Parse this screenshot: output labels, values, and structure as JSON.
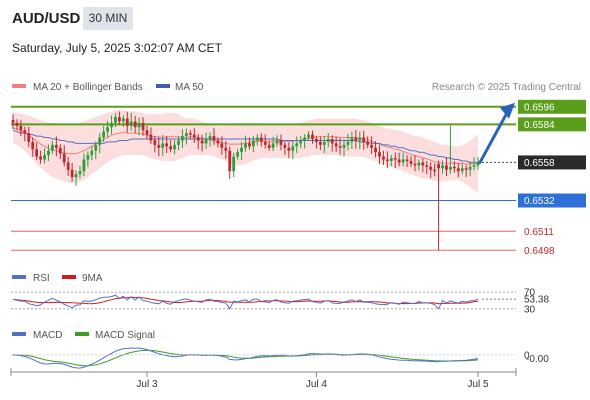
{
  "header": {
    "symbol": "AUD/USD",
    "timeframe": "30 MIN",
    "datetime": "Saturday, July 5, 2025 3:02:07 AM CET"
  },
  "legend": {
    "ma20": "MA 20 + Bollinger Bands",
    "ma50": "MA 50",
    "credit": "Research © 2025 Trading Central"
  },
  "colors": {
    "green_level": "#5a9e1c",
    "blue_level": "#2f6fd8",
    "red_level": "#e06666",
    "candle_up": "#2e9e3a",
    "candle_down": "#c0282e",
    "ma20": "#f08080",
    "ma50": "#5470c6",
    "band_fill": "#fbd8d8",
    "arrow": "#2a62b8",
    "current_label": "#2b2b2b"
  },
  "chart_data": [
    {
      "type": "candlestick",
      "ylim": [
        0.649,
        0.6602
      ],
      "levels": [
        {
          "value": 0.6596,
          "label": "0.6596",
          "kind": "resistance"
        },
        {
          "value": 0.6584,
          "label": "0.6584",
          "kind": "resistance"
        },
        {
          "value": 0.6558,
          "label": "0.6558",
          "kind": "current"
        },
        {
          "value": 0.6532,
          "label": "0.6532",
          "kind": "pivot"
        },
        {
          "value": 0.6511,
          "label": "0.6511",
          "kind": "support"
        },
        {
          "value": 0.6498,
          "label": "0.6498",
          "kind": "support"
        }
      ],
      "close": [
        0.6585,
        0.6583,
        0.658,
        0.6578,
        0.6572,
        0.6567,
        0.6562,
        0.656,
        0.6563,
        0.6566,
        0.657,
        0.6568,
        0.6564,
        0.6558,
        0.6553,
        0.6548,
        0.655,
        0.6552,
        0.656,
        0.6563,
        0.6566,
        0.657,
        0.6575,
        0.6579,
        0.6582,
        0.6585,
        0.6589,
        0.6586,
        0.6588,
        0.6583,
        0.6586,
        0.6582,
        0.6585,
        0.658,
        0.6577,
        0.6573,
        0.657,
        0.6568,
        0.6571,
        0.6569,
        0.6567,
        0.657,
        0.6573,
        0.6576,
        0.6578,
        0.6577,
        0.6575,
        0.6573,
        0.6571,
        0.6574,
        0.6576,
        0.6573,
        0.6571,
        0.6568,
        0.6566,
        0.6552,
        0.6562,
        0.6565,
        0.6568,
        0.6571,
        0.6569,
        0.6573,
        0.6575,
        0.6572,
        0.657,
        0.6568,
        0.6571,
        0.6573,
        0.657,
        0.6568,
        0.6566,
        0.6569,
        0.6571,
        0.6573,
        0.6575,
        0.6577,
        0.6574,
        0.6572,
        0.657,
        0.6572,
        0.6574,
        0.6571,
        0.6569,
        0.6568,
        0.657,
        0.6572,
        0.6575,
        0.6573,
        0.6575,
        0.6572,
        0.657,
        0.6568,
        0.6565,
        0.6562,
        0.656,
        0.6559,
        0.6561,
        0.656,
        0.6558,
        0.656,
        0.6559,
        0.6557,
        0.6556,
        0.6558,
        0.6556,
        0.6555,
        0.6553,
        0.6552,
        0.6554,
        0.6556,
        0.6553,
        0.6555,
        0.6554,
        0.6552,
        0.6554,
        0.6553,
        0.6555,
        0.6556,
        0.6558
      ],
      "band_upper": [
        0.6592,
        0.6592,
        0.6591,
        0.6591,
        0.659,
        0.6589,
        0.6588,
        0.6587,
        0.6586,
        0.6585,
        0.6585,
        0.6585,
        0.6584,
        0.6584,
        0.6584,
        0.6584,
        0.6584,
        0.6585,
        0.6586,
        0.6587,
        0.6588,
        0.6589,
        0.659,
        0.6591,
        0.6592,
        0.6593,
        0.6594,
        0.6594,
        0.6594,
        0.6593,
        0.6593,
        0.6593,
        0.6592,
        0.6592,
        0.6591,
        0.6591,
        0.6591,
        0.6591,
        0.6591,
        0.6592,
        0.6592,
        0.6592,
        0.6591,
        0.6589,
        0.6588,
        0.6588,
        0.6588,
        0.6587,
        0.6586,
        0.6585,
        0.6584,
        0.6584,
        0.6583,
        0.6583,
        0.6583,
        0.6584,
        0.6585,
        0.6585,
        0.6585,
        0.6585,
        0.6585,
        0.6585,
        0.6585,
        0.6585,
        0.6584,
        0.6584,
        0.6584,
        0.6584,
        0.6584,
        0.6584,
        0.6584,
        0.6584,
        0.6585,
        0.6585,
        0.6586,
        0.6587,
        0.6587,
        0.6588,
        0.6588,
        0.6588,
        0.6588,
        0.6588,
        0.6588,
        0.6588,
        0.6588,
        0.6588,
        0.6588,
        0.6588,
        0.6587,
        0.6587,
        0.6586,
        0.6585,
        0.6584,
        0.6583,
        0.6582,
        0.6581,
        0.6581,
        0.658,
        0.658,
        0.6579,
        0.6578,
        0.6577,
        0.6576,
        0.6576,
        0.6575,
        0.6574,
        0.6573,
        0.6572,
        0.6571,
        0.657,
        0.657,
        0.6569,
        0.6569,
        0.6569,
        0.657,
        0.6571,
        0.6573,
        0.6575,
        0.6577
      ],
      "band_lower": [
        0.6571,
        0.657,
        0.6568,
        0.6566,
        0.6563,
        0.656,
        0.6557,
        0.6554,
        0.6552,
        0.655,
        0.6548,
        0.6547,
        0.6546,
        0.6545,
        0.6544,
        0.6544,
        0.6544,
        0.6545,
        0.6546,
        0.6548,
        0.655,
        0.6552,
        0.6554,
        0.6556,
        0.6558,
        0.656,
        0.6561,
        0.6562,
        0.6563,
        0.6563,
        0.6563,
        0.6563,
        0.6563,
        0.6563,
        0.6562,
        0.6561,
        0.656,
        0.656,
        0.6559,
        0.6559,
        0.6559,
        0.6559,
        0.656,
        0.6561,
        0.6562,
        0.6563,
        0.6563,
        0.6563,
        0.6563,
        0.6563,
        0.6563,
        0.6562,
        0.6561,
        0.656,
        0.6559,
        0.6557,
        0.6556,
        0.6556,
        0.6556,
        0.6557,
        0.6558,
        0.6559,
        0.656,
        0.6561,
        0.6561,
        0.6561,
        0.6561,
        0.6561,
        0.6561,
        0.6561,
        0.6561,
        0.6561,
        0.6561,
        0.6561,
        0.6562,
        0.6562,
        0.6563,
        0.6563,
        0.6563,
        0.6563,
        0.6563,
        0.6563,
        0.6563,
        0.6562,
        0.6562,
        0.6562,
        0.6562,
        0.6562,
        0.6562,
        0.6562,
        0.6561,
        0.656,
        0.6559,
        0.6558,
        0.6557,
        0.6556,
        0.6555,
        0.6554,
        0.6553,
        0.6552,
        0.6551,
        0.655,
        0.6549,
        0.6548,
        0.6547,
        0.6547,
        0.6546,
        0.6545,
        0.6545,
        0.6545,
        0.6545,
        0.6546,
        0.6546,
        0.6546,
        0.6545,
        0.6543,
        0.6541,
        0.6539,
        0.6537
      ],
      "ma50": [
        0.658,
        0.6579,
        0.6578,
        0.6578,
        0.6577,
        0.6577,
        0.6576,
        0.6576,
        0.6575,
        0.6575,
        0.6574,
        0.6574,
        0.6573,
        0.6573,
        0.6572,
        0.6572,
        0.6571,
        0.6571,
        0.6571,
        0.6571,
        0.6571,
        0.6571,
        0.6571,
        0.6571,
        0.6572,
        0.6572,
        0.6572,
        0.6573,
        0.6573,
        0.6573,
        0.6574,
        0.6574,
        0.6574,
        0.6574,
        0.6574,
        0.6574,
        0.6574,
        0.6574,
        0.6574,
        0.6574,
        0.6574,
        0.6574,
        0.6574,
        0.6574,
        0.6574,
        0.6574,
        0.6574,
        0.6574,
        0.6574,
        0.6574,
        0.6574,
        0.6574,
        0.6574,
        0.6574,
        0.6574,
        0.6574,
        0.6574,
        0.6574,
        0.6574,
        0.6574,
        0.6574,
        0.6574,
        0.6574,
        0.6574,
        0.6574,
        0.6574,
        0.6574,
        0.6574,
        0.6573,
        0.6573,
        0.6573,
        0.6573,
        0.6573,
        0.6573,
        0.6573,
        0.6573,
        0.6573,
        0.6573,
        0.6573,
        0.6573,
        0.6573,
        0.6573,
        0.6573,
        0.6573,
        0.6573,
        0.6573,
        0.6573,
        0.6573,
        0.6572,
        0.6572,
        0.6572,
        0.6571,
        0.6571,
        0.6571,
        0.657,
        0.657,
        0.6569,
        0.6569,
        0.6568,
        0.6568,
        0.6567,
        0.6566,
        0.6566,
        0.6565,
        0.6565,
        0.6564,
        0.6563,
        0.6563,
        0.6562,
        0.6562,
        0.6561,
        0.6561,
        0.656,
        0.656,
        0.6559,
        0.6559,
        0.6558,
        0.6558,
        0.6558
      ],
      "spikes": [
        {
          "index": 56,
          "low": 0.6548
        },
        {
          "index": 108,
          "low": 0.6498,
          "open": 0.6557
        },
        {
          "index": 111,
          "high": 0.6583
        }
      ],
      "forecast_arrow": {
        "from": 0.6558,
        "to": 0.6596
      }
    },
    {
      "type": "line",
      "name": "RSI",
      "legend": [
        "RSI",
        "9MA"
      ],
      "ylim": [
        20,
        80
      ],
      "ticks": [
        {
          "value": 70,
          "label": "70"
        },
        {
          "value": 30,
          "label": "30"
        }
      ],
      "last_label": "53.38",
      "last_value": 53.38
    },
    {
      "type": "line",
      "name": "MACD",
      "legend": [
        "MACD",
        "MACD Signal"
      ],
      "ylim": [
        -0.0008,
        0.0006
      ],
      "ticks": [
        {
          "value": 0,
          "label": "0"
        }
      ],
      "last_label": "-0.00",
      "last_value": -2e-05
    }
  ],
  "xaxis": {
    "ticks": [
      {
        "label": "Jul 3",
        "index": 34
      },
      {
        "label": "Jul 4",
        "index": 77
      },
      {
        "label": "Jul 5",
        "index": 118
      }
    ]
  }
}
